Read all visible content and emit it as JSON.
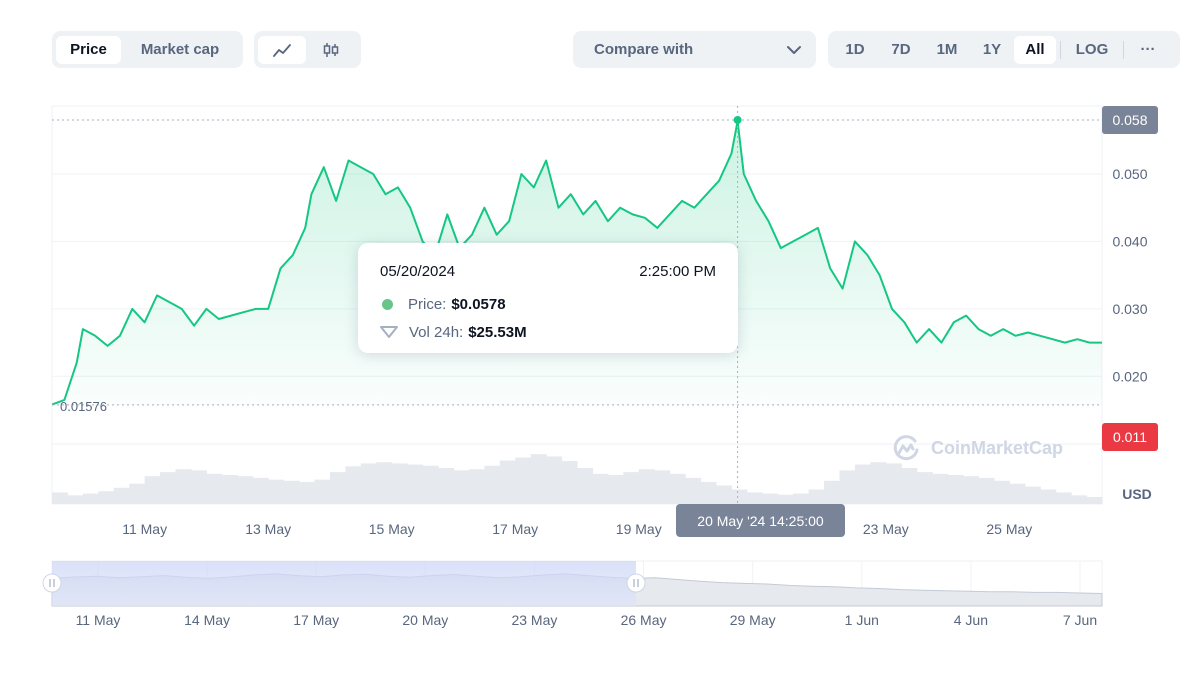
{
  "toolbar": {
    "metric_tabs": [
      {
        "label": "Price",
        "active": true
      },
      {
        "label": "Market cap",
        "active": false
      }
    ],
    "chart_type_icons": [
      "line-chart-icon",
      "candlestick-icon"
    ],
    "compare_label": "Compare with",
    "ranges": [
      {
        "label": "1D",
        "active": false
      },
      {
        "label": "7D",
        "active": false
      },
      {
        "label": "1M",
        "active": false
      },
      {
        "label": "1Y",
        "active": false
      },
      {
        "label": "All",
        "active": true
      }
    ],
    "log_label": "LOG",
    "more_label": "···"
  },
  "tooltip": {
    "date": "05/20/2024",
    "time": "2:25:00 PM",
    "price_label": "Price:",
    "price_value": "$0.0578",
    "vol_label": "Vol 24h:",
    "vol_value": "$25.53M"
  },
  "crosshair_label": "20 May '24 14:25:00",
  "watermark": "CoinMarketCap",
  "colors": {
    "line": "#16c784",
    "high_badge": "#7a8499",
    "low_badge": "#ea3943",
    "volume": "#e6e9ee"
  },
  "chart_data": {
    "type": "line",
    "title": "",
    "ylabel": "",
    "unit_label": "USD",
    "ylim": [
      0.011,
      0.058
    ],
    "y_ticks": [
      0.05,
      0.04,
      0.03,
      0.02
    ],
    "y_tick_labels": [
      "0.050",
      "0.040",
      "0.030",
      "0.020"
    ],
    "high_label": "0.058",
    "low_label": "0.011",
    "start_value_label": "0.01576",
    "start_value": 0.01576,
    "x_range": [
      9.5,
      26.5
    ],
    "x_ticks": [
      11,
      13,
      15,
      17,
      19,
      21,
      23,
      25
    ],
    "x_tick_labels": [
      "11 May",
      "13 May",
      "15 May",
      "17 May",
      "19 May",
      "21 May",
      "23 May",
      "25 May"
    ],
    "hover_x": 20.6,
    "series": [
      {
        "x": [
          9.5,
          9.7,
          9.9,
          10.0,
          10.2,
          10.4,
          10.6,
          10.8,
          11.0,
          11.2,
          11.4,
          11.6,
          11.8,
          12.0,
          12.2,
          12.4,
          12.6,
          12.8,
          13.0,
          13.2,
          13.4,
          13.6,
          13.7,
          13.9,
          14.1,
          14.3,
          14.5,
          14.7,
          14.9,
          15.1,
          15.3,
          15.5,
          15.7,
          15.9,
          16.1,
          16.3,
          16.5,
          16.7,
          16.9,
          17.1,
          17.3,
          17.5,
          17.7,
          17.9,
          18.1,
          18.3,
          18.5,
          18.7,
          18.9,
          19.1,
          19.3,
          19.5,
          19.7,
          19.9,
          20.1,
          20.3,
          20.5,
          20.6,
          20.7,
          20.9,
          21.1,
          21.3,
          21.5,
          21.7,
          21.9,
          22.1,
          22.3,
          22.5,
          22.7,
          22.9,
          23.1,
          23.3,
          23.5,
          23.7,
          23.9,
          24.1,
          24.3,
          24.5,
          24.7,
          24.9,
          25.1,
          25.3,
          25.5,
          25.7,
          25.9,
          26.1,
          26.3,
          26.5
        ],
        "y": [
          0.0158,
          0.0165,
          0.022,
          0.027,
          0.026,
          0.0245,
          0.026,
          0.03,
          0.028,
          0.032,
          0.031,
          0.03,
          0.0275,
          0.03,
          0.0285,
          0.029,
          0.0295,
          0.03,
          0.03,
          0.036,
          0.038,
          0.042,
          0.047,
          0.051,
          0.046,
          0.052,
          0.051,
          0.05,
          0.047,
          0.048,
          0.045,
          0.04,
          0.038,
          0.044,
          0.039,
          0.041,
          0.045,
          0.041,
          0.043,
          0.05,
          0.048,
          0.052,
          0.045,
          0.047,
          0.044,
          0.046,
          0.043,
          0.045,
          0.044,
          0.0435,
          0.042,
          0.044,
          0.046,
          0.045,
          0.047,
          0.049,
          0.053,
          0.0578,
          0.05,
          0.046,
          0.043,
          0.039,
          0.04,
          0.041,
          0.042,
          0.036,
          0.033,
          0.04,
          0.038,
          0.035,
          0.03,
          0.028,
          0.025,
          0.027,
          0.025,
          0.028,
          0.029,
          0.027,
          0.026,
          0.027,
          0.026,
          0.0265,
          0.026,
          0.0255,
          0.025,
          0.0255,
          0.025,
          0.025
        ]
      }
    ],
    "volume": [
      0.2,
      0.15,
      0.18,
      0.22,
      0.28,
      0.35,
      0.48,
      0.55,
      0.6,
      0.58,
      0.52,
      0.5,
      0.48,
      0.45,
      0.42,
      0.4,
      0.38,
      0.42,
      0.55,
      0.65,
      0.7,
      0.72,
      0.7,
      0.68,
      0.66,
      0.62,
      0.58,
      0.6,
      0.66,
      0.75,
      0.8,
      0.86,
      0.82,
      0.74,
      0.62,
      0.52,
      0.5,
      0.55,
      0.6,
      0.58,
      0.52,
      0.45,
      0.38,
      0.32,
      0.25,
      0.2,
      0.18,
      0.16,
      0.18,
      0.25,
      0.4,
      0.58,
      0.68,
      0.72,
      0.7,
      0.62,
      0.55,
      0.52,
      0.5,
      0.48,
      0.45,
      0.4,
      0.35,
      0.3,
      0.25,
      0.2,
      0.15,
      0.12
    ],
    "navigator": {
      "x_tick_labels": [
        "11 May",
        "14 May",
        "17 May",
        "20 May",
        "23 May",
        "26 May",
        "29 May",
        "1 Jun",
        "4 Jun",
        "7 Jun"
      ],
      "selection": [
        "11 May",
        "26 May"
      ],
      "values": [
        0.7,
        0.75,
        0.78,
        0.72,
        0.76,
        0.8,
        0.74,
        0.7,
        0.75,
        0.82,
        0.86,
        0.8,
        0.76,
        0.82,
        0.85,
        0.78,
        0.74,
        0.8,
        0.84,
        0.78,
        0.72,
        0.76,
        0.82,
        0.86,
        0.8,
        0.74,
        0.7,
        0.72,
        0.66,
        0.6,
        0.55,
        0.52,
        0.5,
        0.45,
        0.42,
        0.4,
        0.36,
        0.34,
        0.3,
        0.28,
        0.26,
        0.24,
        0.22,
        0.22,
        0.2,
        0.2,
        0.18,
        0.16
      ]
    }
  }
}
